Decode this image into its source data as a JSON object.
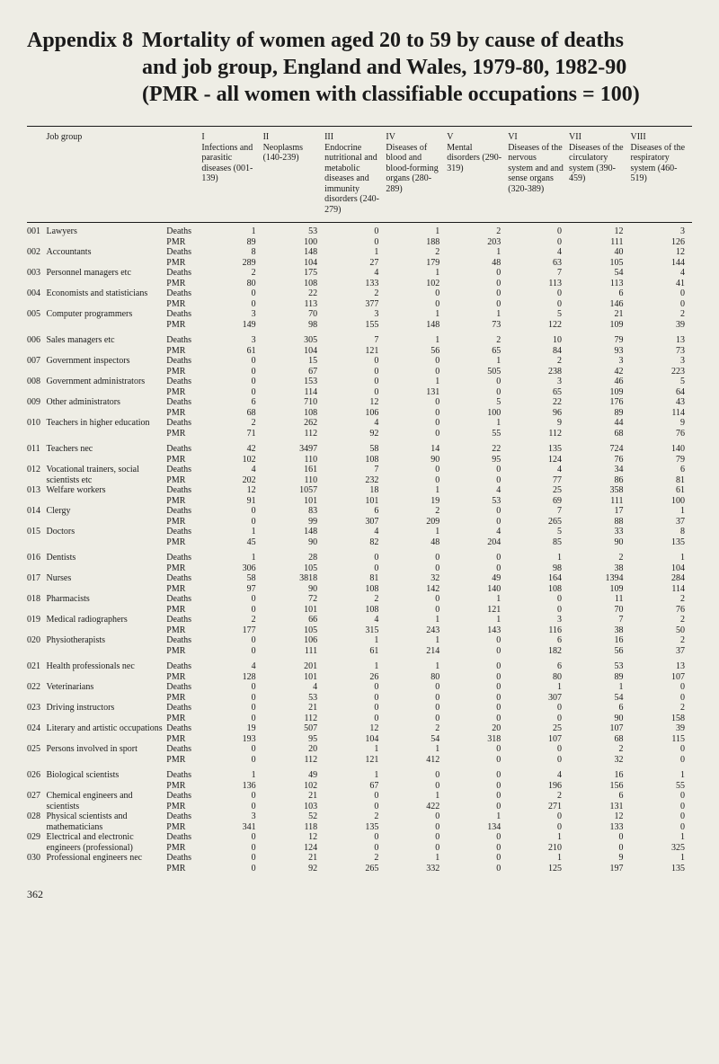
{
  "title_label": "Appendix 8",
  "title_body_line1": "Mortality of women aged 20 to 59 by cause of deaths",
  "title_body_line2": "and job group, England and Wales, 1979-80, 1982-90",
  "title_body_line3": "(PMR - all women with classifiable occupations = 100)",
  "jobgroup_header": "Job group",
  "metric_labels": [
    "Deaths",
    "PMR"
  ],
  "page_number": "362",
  "columns": [
    {
      "roman": "I",
      "label": "Infections and parasitic diseases (001-139)"
    },
    {
      "roman": "II",
      "label": "Neoplasms (140-239)"
    },
    {
      "roman": "III",
      "label": "Endocrine nutritional and metabolic diseases and immunity disorders (240-279)"
    },
    {
      "roman": "IV",
      "label": "Diseases of blood and blood-forming organs (280-289)"
    },
    {
      "roman": "V",
      "label": "Mental disorders (290-319)"
    },
    {
      "roman": "VI",
      "label": "Diseases of the nervous system and and sense organs (320-389)"
    },
    {
      "roman": "VII",
      "label": "Diseases of the circulatory system (390-459)"
    },
    {
      "roman": "VIII",
      "label": "Diseases of the respiratory system (460-519)"
    }
  ],
  "groups": [
    {
      "rows": [
        {
          "code": "001",
          "name": "Lawyers",
          "deaths": [
            1,
            53,
            0,
            1,
            2,
            0,
            12,
            3
          ],
          "pmr": [
            89,
            100,
            0,
            188,
            203,
            0,
            111,
            126
          ]
        },
        {
          "code": "002",
          "name": "Accountants",
          "deaths": [
            8,
            148,
            1,
            2,
            1,
            4,
            40,
            12
          ],
          "pmr": [
            289,
            104,
            27,
            179,
            48,
            63,
            105,
            144
          ]
        },
        {
          "code": "003",
          "name": "Personnel managers etc",
          "deaths": [
            2,
            175,
            4,
            1,
            0,
            7,
            54,
            4
          ],
          "pmr": [
            80,
            108,
            133,
            102,
            0,
            113,
            113,
            41
          ]
        },
        {
          "code": "004",
          "name": "Economists and statisticians",
          "deaths": [
            0,
            22,
            2,
            0,
            0,
            0,
            6,
            0
          ],
          "pmr": [
            0,
            113,
            377,
            0,
            0,
            0,
            146,
            0
          ]
        },
        {
          "code": "005",
          "name": "Computer programmers",
          "deaths": [
            3,
            70,
            3,
            1,
            1,
            5,
            21,
            2
          ],
          "pmr": [
            149,
            98,
            155,
            148,
            73,
            122,
            109,
            39
          ]
        }
      ]
    },
    {
      "rows": [
        {
          "code": "006",
          "name": "Sales managers etc",
          "deaths": [
            3,
            305,
            7,
            1,
            2,
            10,
            79,
            13
          ],
          "pmr": [
            61,
            104,
            121,
            56,
            65,
            84,
            93,
            73
          ]
        },
        {
          "code": "007",
          "name": "Government inspectors",
          "deaths": [
            0,
            15,
            0,
            0,
            1,
            2,
            3,
            3
          ],
          "pmr": [
            0,
            67,
            0,
            0,
            505,
            238,
            42,
            223
          ]
        },
        {
          "code": "008",
          "name": "Government administrators",
          "deaths": [
            0,
            153,
            0,
            1,
            0,
            3,
            46,
            5
          ],
          "pmr": [
            0,
            114,
            0,
            131,
            0,
            65,
            109,
            64
          ]
        },
        {
          "code": "009",
          "name": "Other administrators",
          "deaths": [
            6,
            710,
            12,
            0,
            5,
            22,
            176,
            43
          ],
          "pmr": [
            68,
            108,
            106,
            0,
            100,
            96,
            89,
            114
          ]
        },
        {
          "code": "010",
          "name": "Teachers in higher education",
          "deaths": [
            2,
            262,
            4,
            0,
            1,
            9,
            44,
            9
          ],
          "pmr": [
            71,
            112,
            92,
            0,
            55,
            112,
            68,
            76
          ]
        }
      ]
    },
    {
      "rows": [
        {
          "code": "011",
          "name": "Teachers nec",
          "deaths": [
            42,
            3497,
            58,
            14,
            22,
            135,
            724,
            140
          ],
          "pmr": [
            102,
            110,
            108,
            90,
            95,
            124,
            76,
            79
          ]
        },
        {
          "code": "012",
          "name": "Vocational trainers, social scientists etc",
          "deaths": [
            4,
            161,
            7,
            0,
            0,
            4,
            34,
            6
          ],
          "pmr": [
            202,
            110,
            232,
            0,
            0,
            77,
            86,
            81
          ]
        },
        {
          "code": "013",
          "name": "Welfare workers",
          "deaths": [
            12,
            1057,
            18,
            1,
            4,
            25,
            358,
            61
          ],
          "pmr": [
            91,
            101,
            101,
            19,
            53,
            69,
            111,
            100
          ]
        },
        {
          "code": "014",
          "name": "Clergy",
          "deaths": [
            0,
            83,
            6,
            2,
            0,
            7,
            17,
            1
          ],
          "pmr": [
            0,
            99,
            307,
            209,
            0,
            265,
            88,
            37
          ]
        },
        {
          "code": "015",
          "name": "Doctors",
          "deaths": [
            1,
            148,
            4,
            1,
            4,
            5,
            33,
            8
          ],
          "pmr": [
            45,
            90,
            82,
            48,
            204,
            85,
            90,
            135
          ]
        }
      ]
    },
    {
      "rows": [
        {
          "code": "016",
          "name": "Dentists",
          "deaths": [
            1,
            28,
            0,
            0,
            0,
            1,
            2,
            1
          ],
          "pmr": [
            306,
            105,
            0,
            0,
            0,
            98,
            38,
            104
          ]
        },
        {
          "code": "017",
          "name": "Nurses",
          "deaths": [
            58,
            3818,
            81,
            32,
            49,
            164,
            1394,
            284
          ],
          "pmr": [
            97,
            90,
            108,
            142,
            140,
            108,
            109,
            114
          ]
        },
        {
          "code": "018",
          "name": "Pharmacists",
          "deaths": [
            0,
            72,
            2,
            0,
            1,
            0,
            11,
            2
          ],
          "pmr": [
            0,
            101,
            108,
            0,
            121,
            0,
            70,
            76
          ]
        },
        {
          "code": "019",
          "name": "Medical radiographers",
          "deaths": [
            2,
            66,
            4,
            1,
            1,
            3,
            7,
            2
          ],
          "pmr": [
            177,
            105,
            315,
            243,
            143,
            116,
            38,
            50
          ]
        },
        {
          "code": "020",
          "name": "Physiotherapists",
          "deaths": [
            0,
            106,
            1,
            1,
            0,
            6,
            16,
            2
          ],
          "pmr": [
            0,
            111,
            61,
            214,
            0,
            182,
            56,
            37
          ]
        }
      ]
    },
    {
      "rows": [
        {
          "code": "021",
          "name": "Health professionals nec",
          "deaths": [
            4,
            201,
            1,
            1,
            0,
            6,
            53,
            13
          ],
          "pmr": [
            128,
            101,
            26,
            80,
            0,
            80,
            89,
            107
          ]
        },
        {
          "code": "022",
          "name": "Veterinarians",
          "deaths": [
            0,
            4,
            0,
            0,
            0,
            1,
            1,
            0
          ],
          "pmr": [
            0,
            53,
            0,
            0,
            0,
            307,
            54,
            0
          ]
        },
        {
          "code": "023",
          "name": "Driving instructors",
          "deaths": [
            0,
            21,
            0,
            0,
            0,
            0,
            6,
            2
          ],
          "pmr": [
            0,
            112,
            0,
            0,
            0,
            0,
            90,
            158
          ]
        },
        {
          "code": "024",
          "name": "Literary and artistic occupations",
          "deaths": [
            19,
            507,
            12,
            2,
            20,
            25,
            107,
            39
          ],
          "pmr": [
            193,
            95,
            104,
            54,
            318,
            107,
            68,
            115
          ]
        },
        {
          "code": "025",
          "name": "Persons involved in sport",
          "deaths": [
            0,
            20,
            1,
            1,
            0,
            0,
            2,
            0
          ],
          "pmr": [
            0,
            112,
            121,
            412,
            0,
            0,
            32,
            0
          ]
        }
      ]
    },
    {
      "rows": [
        {
          "code": "026",
          "name": "Biological scientists",
          "deaths": [
            1,
            49,
            1,
            0,
            0,
            4,
            16,
            1
          ],
          "pmr": [
            136,
            102,
            67,
            0,
            0,
            196,
            156,
            55
          ]
        },
        {
          "code": "027",
          "name": "Chemical engineers and scientists",
          "deaths": [
            0,
            21,
            0,
            1,
            0,
            2,
            6,
            0
          ],
          "pmr": [
            0,
            103,
            0,
            422,
            0,
            271,
            131,
            0
          ]
        },
        {
          "code": "028",
          "name": "Physical scientists and mathematicians",
          "deaths": [
            3,
            52,
            2,
            0,
            1,
            0,
            12,
            0
          ],
          "pmr": [
            341,
            118,
            135,
            0,
            134,
            0,
            133,
            0
          ]
        },
        {
          "code": "029",
          "name": "Electrical and electronic engineers (professional)",
          "deaths": [
            0,
            12,
            0,
            0,
            0,
            1,
            0,
            1
          ],
          "pmr": [
            0,
            124,
            0,
            0,
            0,
            210,
            0,
            325
          ]
        },
        {
          "code": "030",
          "name": "Professional engineers nec",
          "deaths": [
            0,
            21,
            2,
            1,
            0,
            1,
            9,
            1
          ],
          "pmr": [
            0,
            92,
            265,
            332,
            0,
            125,
            197,
            135
          ]
        }
      ]
    }
  ]
}
